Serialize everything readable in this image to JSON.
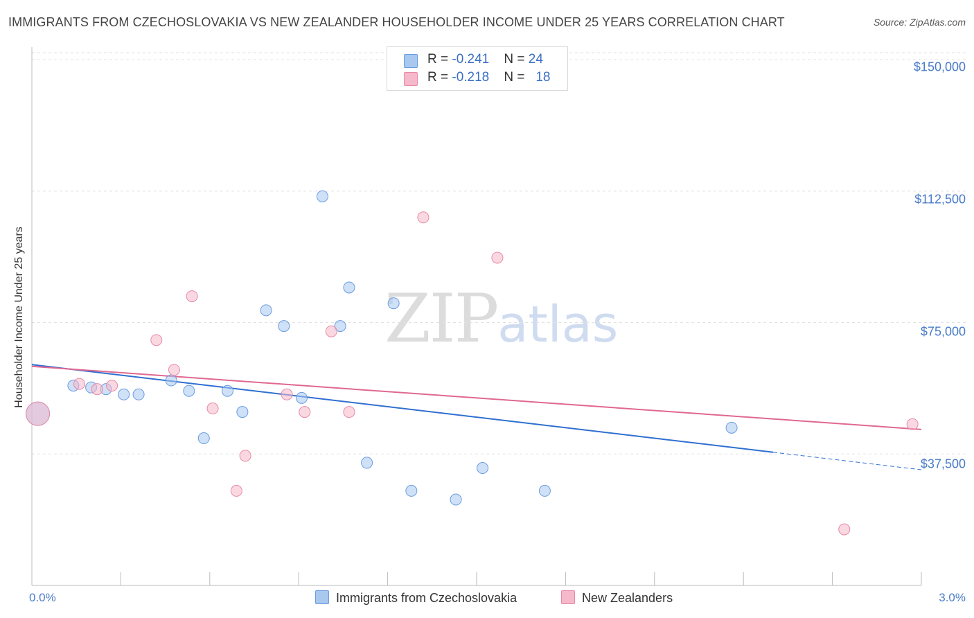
{
  "title": "IMMIGRANTS FROM CZECHOSLOVAKIA VS NEW ZEALANDER HOUSEHOLDER INCOME UNDER 25 YEARS CORRELATION CHART",
  "source": "Source: ZipAtlas.com",
  "watermark": {
    "zip": "ZIP",
    "atlas": "atlas"
  },
  "legend": {
    "rows": [
      {
        "r_label": "R = ",
        "r_value": "-0.241",
        "n_label": "N = ",
        "n_value": "24",
        "color": "#a8c8f0"
      },
      {
        "r_label": "R = ",
        "r_value": "-0.218",
        "n_label": "N = ",
        "n_value": "18",
        "color": "#f6b8cb"
      }
    ]
  },
  "chart_data": {
    "type": "scatter",
    "title": "IMMIGRANTS FROM CZECHOSLOVAKIA VS NEW ZEALANDER HOUSEHOLDER INCOME UNDER 25 YEARS CORRELATION CHART",
    "xlabel": "",
    "ylabel": "Householder Income Under 25 years",
    "xlim": [
      0,
      3.0
    ],
    "ylim": [
      0,
      152000
    ],
    "x_tick_labels": [
      "0.0%",
      "3.0%"
    ],
    "y_ticks": [
      37500,
      75000,
      112500,
      150000
    ],
    "y_tick_labels": [
      "$37,500",
      "$75,000",
      "$112,500",
      "$150,000"
    ],
    "grid": true,
    "legend_position": "top-center",
    "series": [
      {
        "name": "Immigrants from Czechoslovakia",
        "color": "#a8c8f0",
        "stroke": "#6a9be0",
        "trend_color": "#2f6fd0",
        "points": [
          {
            "x": 0.02,
            "y": 49000,
            "big": true
          },
          {
            "x": 0.14,
            "y": 57000
          },
          {
            "x": 0.2,
            "y": 56500
          },
          {
            "x": 0.25,
            "y": 56000
          },
          {
            "x": 0.31,
            "y": 54500
          },
          {
            "x": 0.36,
            "y": 54500
          },
          {
            "x": 0.47,
            "y": 58500
          },
          {
            "x": 0.53,
            "y": 55500
          },
          {
            "x": 0.58,
            "y": 42000
          },
          {
            "x": 0.66,
            "y": 55500
          },
          {
            "x": 0.71,
            "y": 49500
          },
          {
            "x": 0.79,
            "y": 78500
          },
          {
            "x": 0.85,
            "y": 74000
          },
          {
            "x": 0.91,
            "y": 53500
          },
          {
            "x": 0.98,
            "y": 111000
          },
          {
            "x": 1.04,
            "y": 74000
          },
          {
            "x": 1.07,
            "y": 85000
          },
          {
            "x": 1.13,
            "y": 35000
          },
          {
            "x": 1.22,
            "y": 80500
          },
          {
            "x": 1.28,
            "y": 27000
          },
          {
            "x": 1.43,
            "y": 24500
          },
          {
            "x": 1.52,
            "y": 33500
          },
          {
            "x": 1.73,
            "y": 27000
          },
          {
            "x": 2.36,
            "y": 45000
          }
        ],
        "trend": {
          "x0": 0.0,
          "y0": 63000,
          "x1": 2.5,
          "y1": 38000,
          "x_dash_end": 3.0,
          "y_dash_end": 33000
        }
      },
      {
        "name": "New Zealanders",
        "color": "#f6b8cb",
        "stroke": "#e88aa6",
        "trend_color": "#e06890",
        "points": [
          {
            "x": 0.02,
            "y": 49000,
            "big": true
          },
          {
            "x": 0.16,
            "y": 57500
          },
          {
            "x": 0.22,
            "y": 56000
          },
          {
            "x": 0.27,
            "y": 57000
          },
          {
            "x": 0.42,
            "y": 70000
          },
          {
            "x": 0.48,
            "y": 61500
          },
          {
            "x": 0.54,
            "y": 82500
          },
          {
            "x": 0.61,
            "y": 50500
          },
          {
            "x": 0.69,
            "y": 27000
          },
          {
            "x": 0.72,
            "y": 37000
          },
          {
            "x": 0.86,
            "y": 54500
          },
          {
            "x": 0.92,
            "y": 49500
          },
          {
            "x": 1.01,
            "y": 72500
          },
          {
            "x": 1.07,
            "y": 49500
          },
          {
            "x": 1.32,
            "y": 105000
          },
          {
            "x": 1.57,
            "y": 93500
          },
          {
            "x": 2.74,
            "y": 16000
          },
          {
            "x": 2.97,
            "y": 46000
          }
        ],
        "trend": {
          "x0": 0.0,
          "y0": 62500,
          "x1": 3.0,
          "y1": 44500
        }
      }
    ]
  }
}
